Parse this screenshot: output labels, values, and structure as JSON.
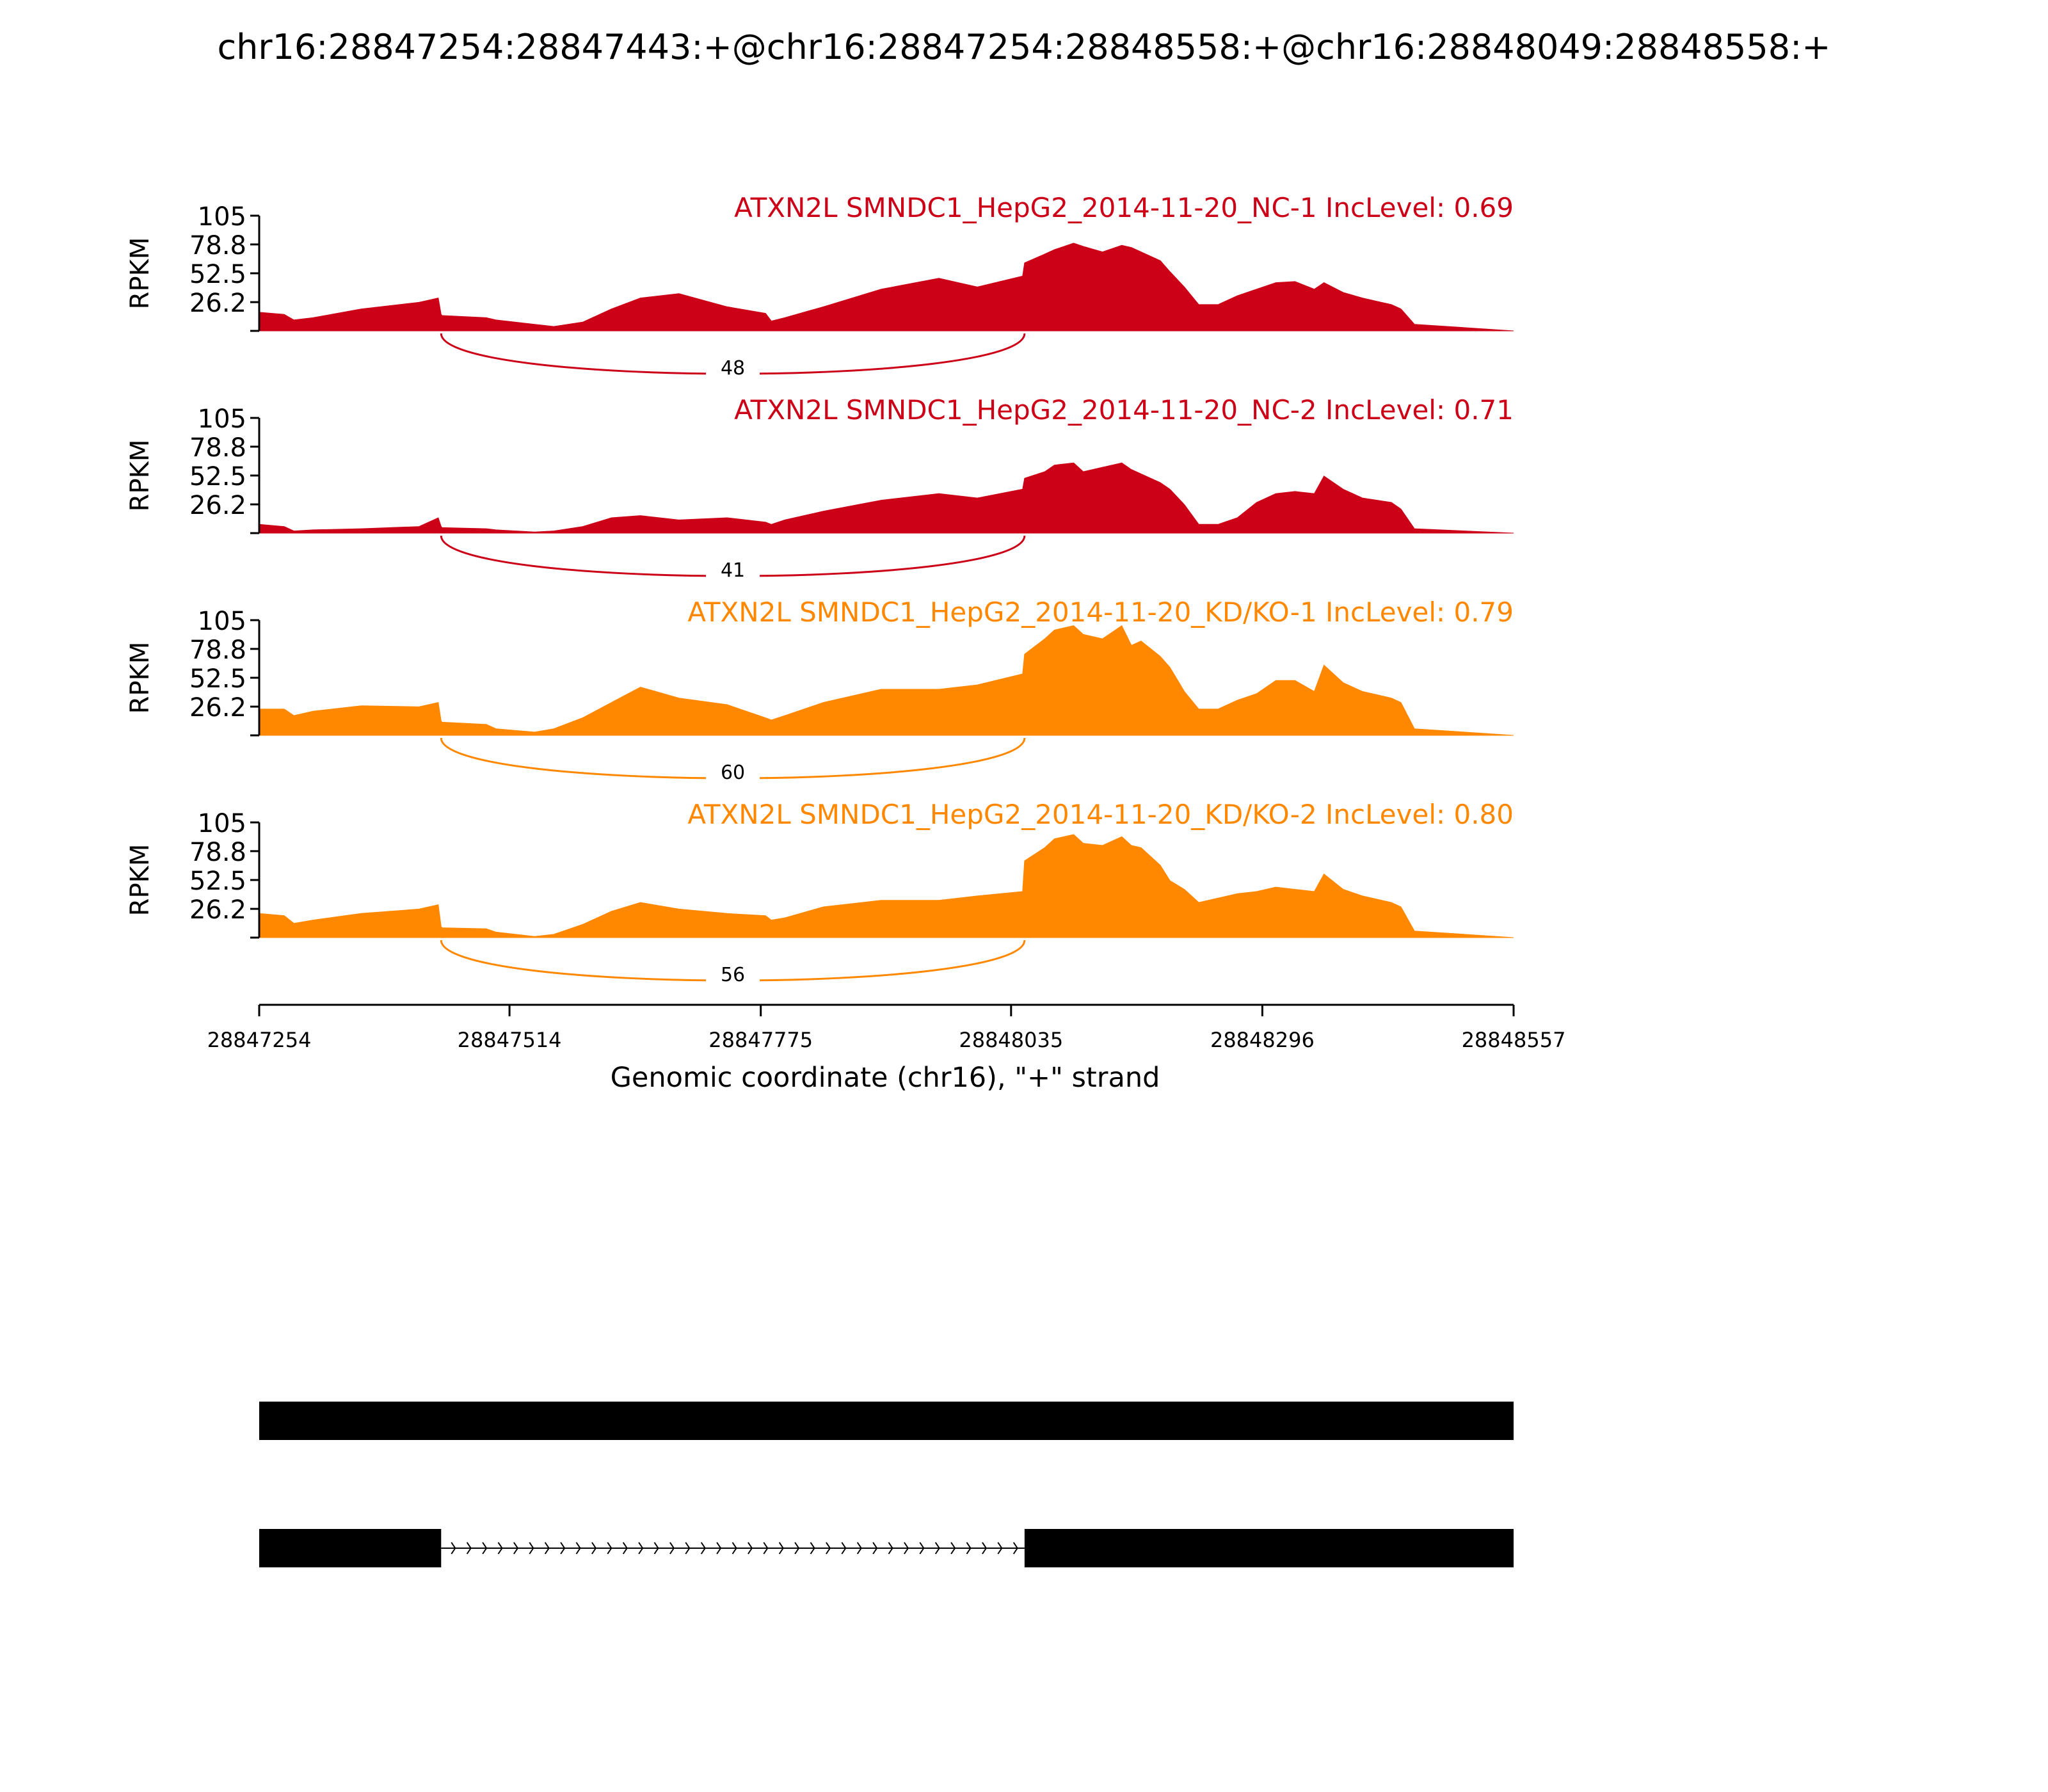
{
  "title": "chr16:28847254:28847443:+@chr16:28847254:28848558:+@chr16:28848049:28848558:+",
  "chart_data": {
    "type": "area",
    "xlabel": "Genomic coordinate (chr16), \"+\" strand",
    "xlim": [
      28847254,
      28848557
    ],
    "xticks": [
      "28847254",
      "28847514",
      "28847775",
      "28848035",
      "28848296",
      "28848557"
    ],
    "ylabel": "RPKM",
    "ylim": [
      0,
      105
    ],
    "yticks": [
      "105",
      "78.8",
      "52.5",
      "26.2"
    ],
    "grid": false,
    "colors": {
      "nc": "#cc0017",
      "kd": "#ff8800",
      "gene": "#000000"
    },
    "junction": {
      "start": 28847443,
      "end": 28848049
    },
    "x": [
      28847254,
      28847280,
      28847290,
      28847310,
      28847360,
      28847420,
      28847440,
      28847443,
      28847444,
      28847490,
      28847500,
      28847540,
      28847560,
      28847590,
      28847620,
      28847650,
      28847690,
      28847740,
      28847780,
      28847786,
      28847800,
      28847840,
      28847900,
      28847960,
      28848000,
      28848047,
      28848049,
      28848070,
      28848080,
      28848100,
      28848110,
      28848130,
      28848150,
      28848160,
      28848170,
      28848190,
      28848200,
      28848215,
      28848230,
      28848250,
      28848270,
      28848290,
      28848310,
      28848330,
      28848350,
      28848360,
      28848380,
      28848400,
      28848430,
      28848440,
      28848454,
      28848557
    ],
    "series": [
      {
        "name": "ATXN2L SMNDC1_HepG2_2014-11-20_NC-1 IncLevel: 0.69",
        "color": "#cc0017",
        "junction_count": "48",
        "values": [
          17,
          15,
          10,
          12,
          20,
          26,
          30,
          15,
          14,
          12,
          10,
          6,
          4,
          8,
          20,
          30,
          34,
          22,
          16,
          9,
          12,
          22,
          38,
          48,
          40,
          50,
          62,
          70,
          74,
          80,
          77,
          72,
          78,
          76,
          72,
          64,
          54,
          40,
          24,
          24,
          32,
          38,
          44,
          45,
          38,
          44,
          35,
          30,
          24,
          20,
          6,
          0
        ]
      },
      {
        "name": "ATXN2L SMNDC1_HepG2_2014-11-20_NC-2 IncLevel: 0.71",
        "color": "#cc0017",
        "junction_count": "41",
        "values": [
          8,
          6,
          2,
          3,
          4,
          6,
          14,
          6,
          5,
          4,
          3,
          1,
          2,
          6,
          14,
          16,
          12,
          14,
          10,
          8,
          12,
          20,
          30,
          36,
          32,
          40,
          50,
          56,
          62,
          64,
          56,
          60,
          64,
          58,
          54,
          46,
          40,
          26,
          8,
          8,
          14,
          28,
          36,
          38,
          36,
          52,
          40,
          32,
          28,
          22,
          4,
          0
        ]
      },
      {
        "name": "ATXN2L SMNDC1_HepG2_2014-11-20_KD/KO-1 IncLevel: 0.79",
        "color": "#ff8800",
        "junction_count": "60",
        "values": [
          24,
          24,
          18,
          22,
          27,
          26,
          30,
          13,
          12,
          10,
          6,
          3,
          6,
          16,
          30,
          44,
          34,
          28,
          16,
          14,
          18,
          30,
          42,
          42,
          46,
          56,
          74,
          88,
          96,
          100,
          92,
          88,
          100,
          82,
          86,
          72,
          62,
          40,
          24,
          24,
          32,
          38,
          50,
          50,
          40,
          64,
          48,
          40,
          34,
          30,
          6,
          0
        ]
      },
      {
        "name": "ATXN2L SMNDC1_HepG2_2014-11-20_KD/KO-2 IncLevel: 0.80",
        "color": "#ff8800",
        "junction_count": "56",
        "values": [
          22,
          20,
          13,
          16,
          22,
          26,
          30,
          10,
          9,
          8,
          5,
          1,
          3,
          12,
          24,
          32,
          26,
          22,
          20,
          16,
          18,
          28,
          34,
          34,
          38,
          42,
          70,
          82,
          90,
          94,
          86,
          84,
          92,
          84,
          82,
          66,
          52,
          44,
          32,
          36,
          40,
          42,
          46,
          44,
          42,
          58,
          44,
          38,
          32,
          28,
          6,
          0
        ]
      }
    ],
    "isoforms": [
      {
        "exons": [
          [
            28847254,
            28848557
          ]
        ]
      },
      {
        "exons": [
          [
            28847254,
            28847443
          ],
          [
            28848049,
            28848557
          ]
        ]
      }
    ]
  }
}
